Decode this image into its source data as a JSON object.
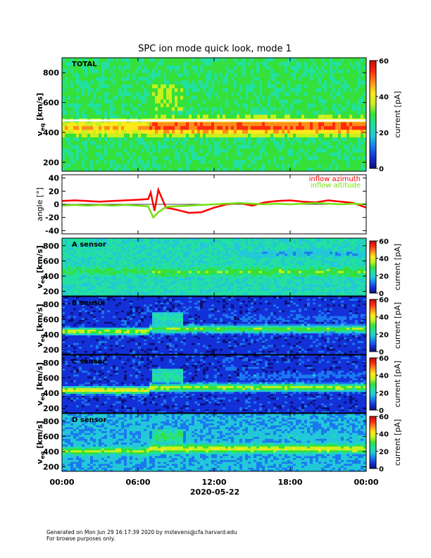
{
  "chart_data": {
    "type": "heatmap",
    "title": "SPC ion mode quick look, mode 1",
    "x_axis": {
      "tick_labels": [
        "00:00",
        "06:00",
        "12:00",
        "18:00",
        "00:00"
      ],
      "tick_hours": [
        0,
        6,
        12,
        18,
        24
      ],
      "date_label": "2020-05-22",
      "range_hours": [
        0,
        24
      ]
    },
    "colorbar": {
      "label": "current [pA]",
      "range": [
        0,
        60
      ],
      "ticks_total": [
        0,
        20,
        40,
        60
      ],
      "ticks_sensor": [
        0,
        20,
        40,
        60
      ],
      "colormap": [
        "#0b0f7a",
        "#1330d8",
        "#1a78f0",
        "#22c8d8",
        "#22e0a0",
        "#35e03a",
        "#c8f01e",
        "#ffe81a",
        "#ff8c1a",
        "#ff2a10",
        "#c80a0a"
      ]
    },
    "velocity_axis": {
      "label_main": "v",
      "label_sub": "eq",
      "label_unit": "[km/s]",
      "ticks_total": [
        200,
        400,
        600,
        800
      ],
      "ticks_sensor": [
        200,
        400,
        600,
        800
      ],
      "range": [
        140,
        900
      ]
    },
    "spectrogram_panels": [
      {
        "name": "TOTAL",
        "background_level": 28,
        "core_level": 46,
        "plateau_level": 55,
        "band_before": [
          400,
          470
        ],
        "band_after": [
          400,
          480
        ],
        "white_gap_kms": 480,
        "beam_kms": 630,
        "beam_level": 30
      },
      {
        "name": "A sensor",
        "background_level": 22,
        "core_level": 30,
        "plateau_level": 32,
        "band_before": [
          440,
          500
        ],
        "band_after": [
          420,
          500
        ],
        "white_gap_kms": null,
        "beam_kms": 700,
        "beam_level": 6
      },
      {
        "name": "B sensor",
        "background_level": 6,
        "core_level": 40,
        "plateau_level": 34,
        "band_before": [
          420,
          470
        ],
        "band_after": [
          440,
          510
        ],
        "white_gap_kms": null,
        "beam_kms": 620,
        "beam_level": 18
      },
      {
        "name": "C sensor",
        "background_level": 6,
        "core_level": 44,
        "plateau_level": 38,
        "band_before": [
          410,
          470
        ],
        "band_after": [
          440,
          510
        ],
        "white_gap_kms": null,
        "beam_kms": 630,
        "beam_level": 20
      },
      {
        "name": "D sensor",
        "background_level": 16,
        "core_level": 36,
        "plateau_level": 40,
        "band_before": [
          380,
          440
        ],
        "band_after": [
          400,
          480
        ],
        "white_gap_kms": null,
        "beam_kms": 600,
        "beam_level": 22
      }
    ],
    "angle_panel": {
      "ylabel": "angle [°]",
      "ylim": [
        -45,
        45
      ],
      "yticks": [
        -40,
        -20,
        0,
        20,
        40
      ],
      "series": [
        {
          "name": "inflow azimuth",
          "color": "#ff0000",
          "x_hours": [
            0,
            1,
            2,
            3,
            4,
            5,
            6,
            6.8,
            7.0,
            7.3,
            7.6,
            8.2,
            9,
            10,
            11,
            12,
            13,
            14,
            15,
            16,
            17,
            18,
            19,
            20,
            21,
            22,
            23,
            24
          ],
          "y": [
            5,
            6,
            5,
            4,
            5,
            6,
            7,
            8,
            18,
            -10,
            22,
            -5,
            -8,
            -13,
            -12,
            -5,
            0,
            2,
            -2,
            3,
            5,
            6,
            4,
            3,
            6,
            4,
            2,
            -5
          ]
        },
        {
          "name": "inflow altitude",
          "color": "#76e00f",
          "x_hours": [
            0,
            1,
            2,
            3,
            4,
            5,
            6,
            6.8,
            7.2,
            7.6,
            8.2,
            9,
            10,
            11,
            12,
            13,
            14,
            15,
            16,
            17,
            18,
            19,
            20,
            21,
            22,
            23,
            24
          ],
          "y": [
            -2,
            -1,
            -2,
            -1,
            -2,
            -1,
            -2,
            -3,
            -20,
            -12,
            -4,
            -3,
            -2,
            -1,
            0,
            1,
            2,
            1,
            0,
            1,
            0,
            1,
            2,
            1,
            0,
            1,
            0
          ]
        }
      ]
    }
  },
  "footer": {
    "line1": "Generated on Mon Jun 29 16:17:39 2020 by mstevens@cfa.harvard.edu",
    "line2": "For browse purposes only."
  }
}
